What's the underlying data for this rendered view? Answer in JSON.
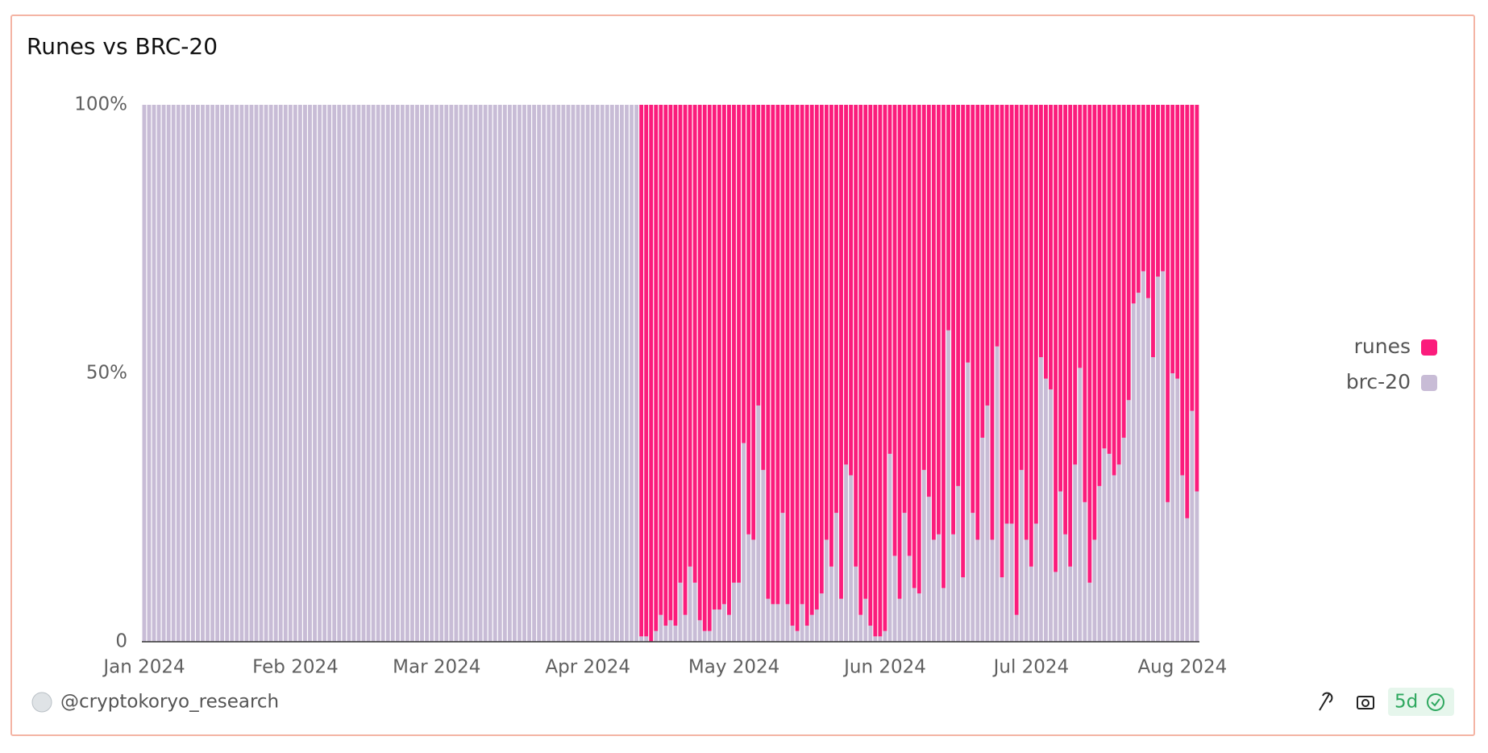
{
  "chart_data": {
    "type": "stacked_bar",
    "title": "Runes vs BRC-20",
    "categories": [
      "Jan 2024",
      null,
      null,
      null,
      null,
      null,
      null,
      null,
      null,
      null,
      null,
      null,
      null,
      null,
      null,
      null,
      null,
      null,
      null,
      null,
      null,
      null,
      null,
      null,
      null,
      null,
      null,
      null,
      null,
      null,
      null,
      "Feb 2024",
      null,
      null,
      null,
      null,
      null,
      null,
      null,
      null,
      null,
      null,
      null,
      null,
      null,
      null,
      null,
      null,
      null,
      null,
      null,
      null,
      null,
      null,
      null,
      null,
      null,
      null,
      null,
      null,
      "Mar 2024",
      null,
      null,
      null,
      null,
      null,
      null,
      null,
      null,
      null,
      null,
      null,
      null,
      null,
      null,
      null,
      null,
      null,
      null,
      null,
      null,
      null,
      null,
      null,
      null,
      null,
      null,
      null,
      null,
      null,
      null,
      "Apr 2024",
      null,
      null,
      null,
      null,
      null,
      null,
      null,
      null,
      null,
      null,
      null,
      null,
      null,
      null,
      null,
      null,
      null,
      null,
      null,
      null,
      null,
      null,
      null,
      null,
      null,
      null,
      null,
      null,
      null,
      "May 2024",
      null,
      null,
      null,
      null,
      null,
      null,
      null,
      null,
      null,
      null,
      null,
      null,
      null,
      null,
      null,
      null,
      null,
      null,
      null,
      null,
      null,
      null,
      null,
      null,
      null,
      null,
      null,
      null,
      null,
      null,
      "Jun 2024",
      null,
      null,
      null,
      null,
      null,
      null,
      null,
      null,
      null,
      null,
      null,
      null,
      null,
      null,
      null,
      null,
      null,
      null,
      null,
      null,
      null,
      null,
      null,
      null,
      null,
      null,
      null,
      null,
      null,
      "Jul 2024",
      null,
      null,
      null,
      null,
      null,
      null,
      null,
      null,
      null,
      null,
      null,
      null,
      null,
      null,
      null,
      null,
      null,
      null,
      null,
      null,
      null,
      null,
      null,
      null,
      null,
      null,
      null,
      null,
      null,
      null,
      "Aug 2024",
      null,
      null,
      null
    ],
    "series": [
      {
        "name": "runes",
        "color": "#fb1c7c",
        "values": [
          0,
          0,
          0,
          0,
          0,
          0,
          0,
          0,
          0,
          0,
          0,
          0,
          0,
          0,
          0,
          0,
          0,
          0,
          0,
          0,
          0,
          0,
          0,
          0,
          0,
          0,
          0,
          0,
          0,
          0,
          0,
          0,
          0,
          0,
          0,
          0,
          0,
          0,
          0,
          0,
          0,
          0,
          0,
          0,
          0,
          0,
          0,
          0,
          0,
          0,
          0,
          0,
          0,
          0,
          0,
          0,
          0,
          0,
          0,
          0,
          0,
          0,
          0,
          0,
          0,
          0,
          0,
          0,
          0,
          0,
          0,
          0,
          0,
          0,
          0,
          0,
          0,
          0,
          0,
          0,
          0,
          0,
          0,
          0,
          0,
          0,
          0,
          0,
          0,
          0,
          0,
          0,
          0,
          0,
          0,
          0,
          0,
          0,
          0,
          0,
          0,
          0,
          99,
          99,
          100,
          98,
          95,
          97,
          96,
          97,
          89,
          95,
          86,
          89,
          96,
          98,
          98,
          94,
          94,
          93,
          95,
          89,
          89,
          63,
          80,
          81,
          56,
          68,
          92,
          93,
          93,
          76,
          93,
          97,
          98,
          93,
          97,
          95,
          94,
          91,
          81,
          86,
          76,
          92,
          67,
          69,
          86,
          95,
          92,
          97,
          99,
          99,
          98,
          65,
          84,
          92,
          76,
          84,
          90,
          91,
          68,
          73,
          81,
          80,
          90,
          42,
          80,
          71,
          88,
          48,
          76,
          81,
          62,
          56,
          81,
          45,
          88,
          78,
          78,
          95,
          68,
          81,
          86,
          78,
          47,
          51,
          53,
          87,
          72,
          80,
          86,
          67,
          49,
          74,
          89,
          81,
          71,
          64,
          65,
          69,
          67,
          62,
          55,
          37,
          35,
          31,
          36,
          47,
          32,
          31,
          74,
          50,
          51,
          69,
          77,
          57,
          72
        ]
      },
      {
        "name": "brc-20",
        "color": "#c8bcd6",
        "values": [
          100,
          100,
          100,
          100,
          100,
          100,
          100,
          100,
          100,
          100,
          100,
          100,
          100,
          100,
          100,
          100,
          100,
          100,
          100,
          100,
          100,
          100,
          100,
          100,
          100,
          100,
          100,
          100,
          100,
          100,
          100,
          100,
          100,
          100,
          100,
          100,
          100,
          100,
          100,
          100,
          100,
          100,
          100,
          100,
          100,
          100,
          100,
          100,
          100,
          100,
          100,
          100,
          100,
          100,
          100,
          100,
          100,
          100,
          100,
          100,
          100,
          100,
          100,
          100,
          100,
          100,
          100,
          100,
          100,
          100,
          100,
          100,
          100,
          100,
          100,
          100,
          100,
          100,
          100,
          100,
          100,
          100,
          100,
          100,
          100,
          100,
          100,
          100,
          100,
          100,
          100,
          100,
          100,
          100,
          100,
          100,
          100,
          100,
          100,
          100,
          100,
          100,
          1,
          1,
          0,
          2,
          5,
          3,
          4,
          3,
          11,
          5,
          14,
          11,
          4,
          2,
          2,
          6,
          6,
          7,
          5,
          11,
          11,
          37,
          20,
          19,
          44,
          32,
          8,
          7,
          7,
          24,
          7,
          3,
          2,
          7,
          3,
          5,
          6,
          9,
          19,
          14,
          24,
          8,
          33,
          31,
          14,
          5,
          8,
          3,
          1,
          1,
          2,
          35,
          16,
          8,
          24,
          16,
          10,
          9,
          32,
          27,
          19,
          20,
          10,
          58,
          20,
          29,
          12,
          52,
          24,
          19,
          38,
          44,
          19,
          55,
          12,
          22,
          22,
          5,
          32,
          19,
          14,
          22,
          53,
          49,
          47,
          13,
          28,
          20,
          14,
          33,
          51,
          26,
          11,
          19,
          29,
          36,
          35,
          31,
          33,
          38,
          45,
          63,
          65,
          69,
          64,
          53,
          68,
          69,
          26,
          50,
          49,
          31,
          23,
          43,
          28
        ]
      }
    ],
    "ylim": [
      0,
      100
    ],
    "yticks": [
      0,
      {
        "value": 50,
        "label": "50%"
      },
      {
        "value": 100,
        "label": "100%"
      }
    ],
    "stacked": true,
    "legend": "right"
  },
  "footer": {
    "author": "@cryptokoryo_research",
    "badge": "5d"
  }
}
